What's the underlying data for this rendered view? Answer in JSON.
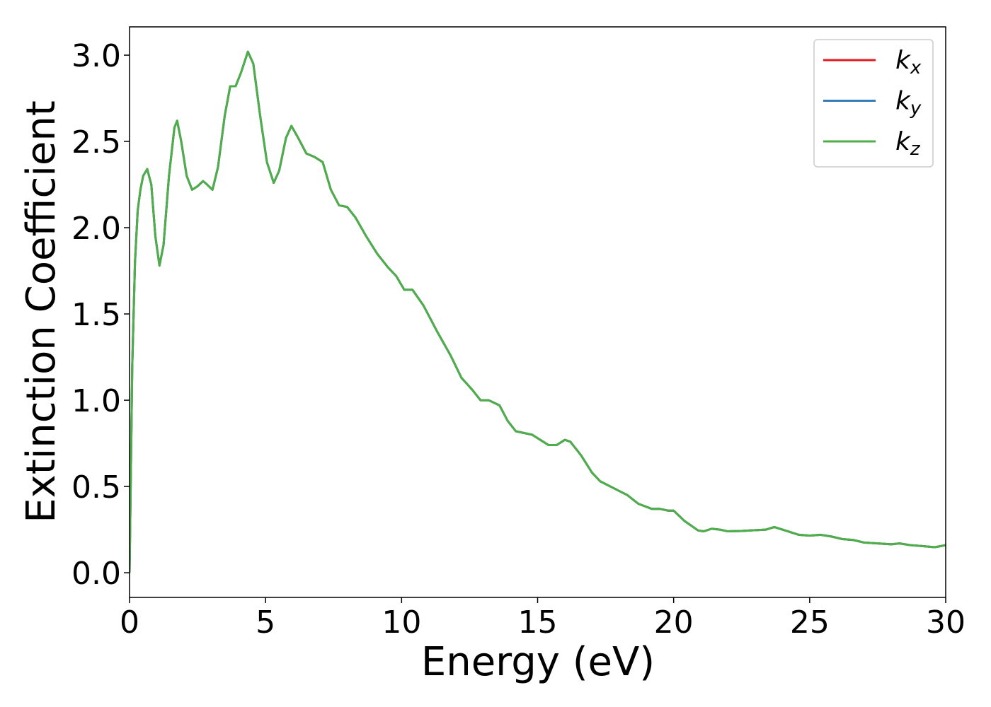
{
  "chart_data": {
    "type": "line",
    "xlabel": "Energy (eV)",
    "ylabel": "Extinction Coefficient",
    "x": [
      0,
      0.1,
      0.2,
      0.3,
      0.4,
      0.5,
      0.65,
      0.8,
      0.95,
      1.1,
      1.25,
      1.45,
      1.65,
      1.75,
      1.9,
      2.1,
      2.3,
      2.5,
      2.7,
      2.85,
      3.05,
      3.25,
      3.5,
      3.7,
      3.9,
      4.1,
      4.35,
      4.55,
      4.8,
      5.05,
      5.3,
      5.5,
      5.75,
      5.95,
      6.2,
      6.5,
      6.8,
      7.1,
      7.4,
      7.7,
      8.0,
      8.3,
      8.7,
      9.1,
      9.5,
      9.8,
      10.1,
      10.4,
      10.8,
      11.3,
      11.8,
      12.2,
      12.6,
      12.9,
      13.2,
      13.6,
      13.9,
      14.2,
      14.8,
      15.1,
      15.4,
      15.7,
      16.0,
      16.2,
      16.6,
      17.0,
      17.3,
      17.8,
      18.3,
      18.7,
      19.2,
      19.5,
      19.8,
      20.0,
      20.4,
      20.9,
      21.1,
      21.4,
      21.7,
      22.0,
      22.5,
      23.0,
      23.4,
      23.7,
      24.1,
      24.6,
      25.0,
      25.4,
      25.8,
      26.2,
      26.6,
      27.0,
      27.5,
      28.0,
      28.3,
      28.7,
      29.1,
      29.6,
      30.0
    ],
    "series": [
      {
        "name": "kx",
        "color": "#e41a1c",
        "values": [
          0.0,
          1.2,
          1.8,
          2.1,
          2.22,
          2.3,
          2.34,
          2.25,
          1.95,
          1.78,
          1.9,
          2.3,
          2.58,
          2.62,
          2.5,
          2.3,
          2.22,
          2.24,
          2.27,
          2.25,
          2.22,
          2.35,
          2.65,
          2.82,
          2.82,
          2.9,
          3.02,
          2.95,
          2.65,
          2.38,
          2.26,
          2.33,
          2.52,
          2.59,
          2.52,
          2.43,
          2.41,
          2.38,
          2.22,
          2.13,
          2.12,
          2.06,
          1.95,
          1.85,
          1.77,
          1.72,
          1.64,
          1.64,
          1.55,
          1.4,
          1.26,
          1.13,
          1.06,
          1.0,
          1.0,
          0.97,
          0.88,
          0.82,
          0.8,
          0.77,
          0.74,
          0.74,
          0.77,
          0.76,
          0.68,
          0.58,
          0.53,
          0.49,
          0.45,
          0.4,
          0.37,
          0.37,
          0.36,
          0.36,
          0.3,
          0.245,
          0.24,
          0.255,
          0.25,
          0.24,
          0.242,
          0.247,
          0.25,
          0.265,
          0.245,
          0.22,
          0.215,
          0.22,
          0.21,
          0.195,
          0.19,
          0.175,
          0.17,
          0.165,
          0.17,
          0.16,
          0.155,
          0.148,
          0.16
        ]
      },
      {
        "name": "ky",
        "color": "#377eb8",
        "values": [
          0.0,
          1.2,
          1.8,
          2.1,
          2.22,
          2.3,
          2.34,
          2.25,
          1.95,
          1.78,
          1.9,
          2.3,
          2.58,
          2.62,
          2.5,
          2.3,
          2.22,
          2.24,
          2.27,
          2.25,
          2.22,
          2.35,
          2.65,
          2.82,
          2.82,
          2.9,
          3.02,
          2.95,
          2.65,
          2.38,
          2.26,
          2.33,
          2.52,
          2.59,
          2.52,
          2.43,
          2.41,
          2.38,
          2.22,
          2.13,
          2.12,
          2.06,
          1.95,
          1.85,
          1.77,
          1.72,
          1.64,
          1.64,
          1.55,
          1.4,
          1.26,
          1.13,
          1.06,
          1.0,
          1.0,
          0.97,
          0.88,
          0.82,
          0.8,
          0.77,
          0.74,
          0.74,
          0.77,
          0.76,
          0.68,
          0.58,
          0.53,
          0.49,
          0.45,
          0.4,
          0.37,
          0.37,
          0.36,
          0.36,
          0.3,
          0.245,
          0.24,
          0.255,
          0.25,
          0.24,
          0.242,
          0.247,
          0.25,
          0.265,
          0.245,
          0.22,
          0.215,
          0.22,
          0.21,
          0.195,
          0.19,
          0.175,
          0.17,
          0.165,
          0.17,
          0.16,
          0.155,
          0.148,
          0.16
        ]
      },
      {
        "name": "kz",
        "color": "#4daf4a",
        "values": [
          0.0,
          1.2,
          1.8,
          2.1,
          2.22,
          2.3,
          2.34,
          2.25,
          1.95,
          1.78,
          1.9,
          2.3,
          2.58,
          2.62,
          2.5,
          2.3,
          2.22,
          2.24,
          2.27,
          2.25,
          2.22,
          2.35,
          2.65,
          2.82,
          2.82,
          2.9,
          3.02,
          2.95,
          2.65,
          2.38,
          2.26,
          2.33,
          2.52,
          2.59,
          2.52,
          2.43,
          2.41,
          2.38,
          2.22,
          2.13,
          2.12,
          2.06,
          1.95,
          1.85,
          1.77,
          1.72,
          1.64,
          1.64,
          1.55,
          1.4,
          1.26,
          1.13,
          1.06,
          1.0,
          1.0,
          0.97,
          0.88,
          0.82,
          0.8,
          0.77,
          0.74,
          0.74,
          0.77,
          0.76,
          0.68,
          0.58,
          0.53,
          0.49,
          0.45,
          0.4,
          0.37,
          0.37,
          0.36,
          0.36,
          0.3,
          0.245,
          0.24,
          0.255,
          0.25,
          0.24,
          0.242,
          0.247,
          0.25,
          0.265,
          0.245,
          0.22,
          0.215,
          0.22,
          0.21,
          0.195,
          0.19,
          0.175,
          0.17,
          0.165,
          0.17,
          0.16,
          0.155,
          0.148,
          0.16
        ]
      }
    ],
    "xlim": [
      0,
      30
    ],
    "xticks": [
      0,
      5,
      10,
      15,
      20,
      25,
      30
    ],
    "ylim": [
      -0.143,
      3.164
    ],
    "yticks": [
      {
        "value": 0,
        "label": "0.0"
      },
      {
        "value": 0.5,
        "label": "0.5"
      },
      {
        "value": 1,
        "label": "1.0"
      },
      {
        "value": 1.5,
        "label": "1.5"
      },
      {
        "value": 2,
        "label": "2.0"
      },
      {
        "value": 2.5,
        "label": "2.5"
      },
      {
        "value": 3,
        "label": "3.0"
      }
    ],
    "legend": "upper right",
    "grid": false
  }
}
